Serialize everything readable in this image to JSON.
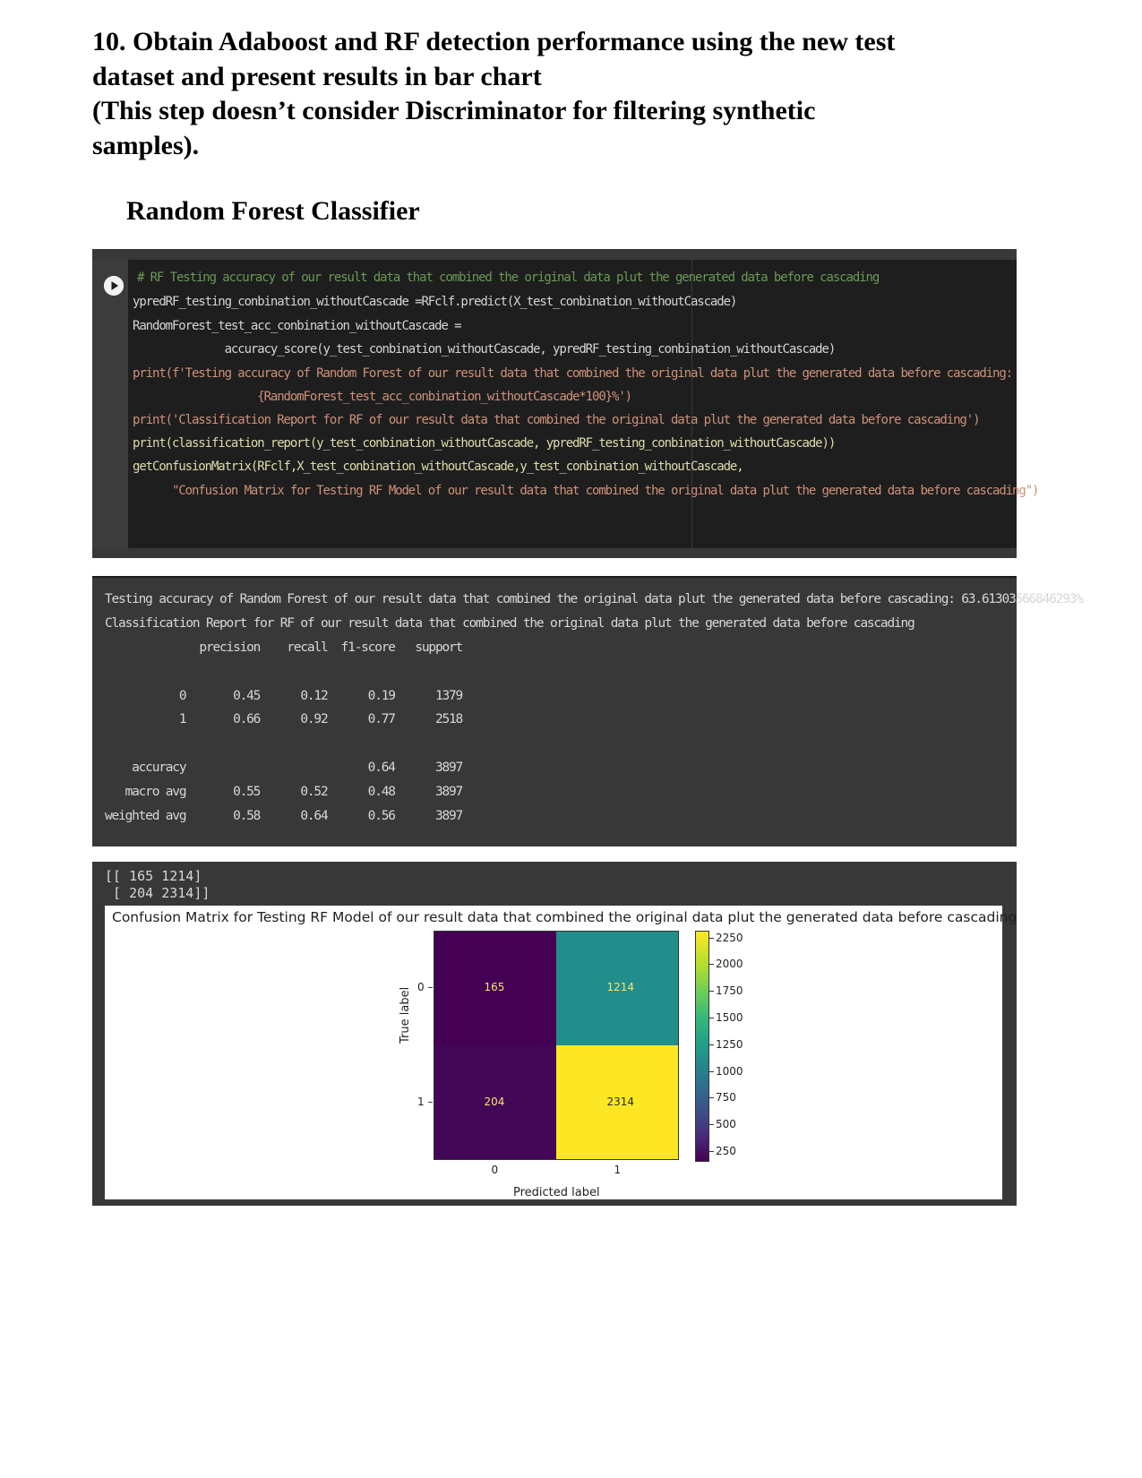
{
  "document": {
    "heading_lines": [
      "10. Obtain Adaboost and RF detection performance using the new test",
      "dataset and present results in bar chart",
      "(This step doesn’t consider Discriminator for filtering synthetic",
      "samples)."
    ],
    "subheading": "Random Forest Classifier"
  },
  "code_cell": {
    "lines": [
      "# RF Testing accuracy of our result data that combined the original data plut the generated data before cascading",
      "ypredRF_testing_conbination_withoutCascade =RFclf.predict(X_test_conbination_withoutCascade)",
      "RandomForest_test_acc_conbination_withoutCascade =",
      "              accuracy_score(y_test_conbination_withoutCascade, ypredRF_testing_conbination_withoutCascade)",
      "print(f'Testing accuracy of Random Forest of our result data that combined the original data plut the generated data before cascading:",
      "                   {RandomForest_test_acc_conbination_withoutCascade*100}%')",
      "print('Classification Report for RF of our result data that combined the original data plut the generated data before cascading')",
      "print(classification_report(y_test_conbination_withoutCascade, ypredRF_testing_conbination_withoutCascade))",
      "getConfusionMatrix(RFclf,X_test_conbination_withoutCascade,y_test_conbination_withoutCascade,",
      "      \"Confusion Matrix for Testing RF Model of our result data that combined the original data plut the generated data before cascading\")"
    ]
  },
  "output": {
    "accuracy_line": "Testing accuracy of Random Forest of our result data that combined the original data plut the generated data before cascading: 63.61303566846293%",
    "report_title": "Classification Report for RF of our result data that combined the original data plut the generated data before cascading",
    "report_header": "              precision    recall  f1-score   support",
    "report_rows": [
      "           0       0.45      0.12      0.19      1379",
      "           1       0.66      0.92      0.77      2518",
      "    accuracy                           0.64      3897",
      "   macro avg       0.55      0.52      0.48      3897",
      "weighted avg       0.58      0.64      0.56      3897"
    ]
  },
  "matrix_print": [
    "[[ 165 1214]",
    " [ 204 2314]]"
  ],
  "chart_data": {
    "type": "heatmap",
    "title": "Confusion Matrix for Testing RF Model of our result data that combined the original data plut the generated data before cascading",
    "xlabel": "Predicted label",
    "ylabel": "True label",
    "x_ticks": [
      "0",
      "1"
    ],
    "y_ticks": [
      "0",
      "1"
    ],
    "values": [
      [
        165,
        1214
      ],
      [
        204,
        2314
      ]
    ],
    "colormap": "viridis",
    "colorbar_ticks": [
      2250,
      2000,
      1750,
      1500,
      1250,
      1000,
      750,
      500,
      250
    ],
    "colorbar_range": [
      165,
      2314
    ],
    "colors": {
      "min": "#440154",
      "mid": "#21918c",
      "max": "#fde725"
    }
  }
}
